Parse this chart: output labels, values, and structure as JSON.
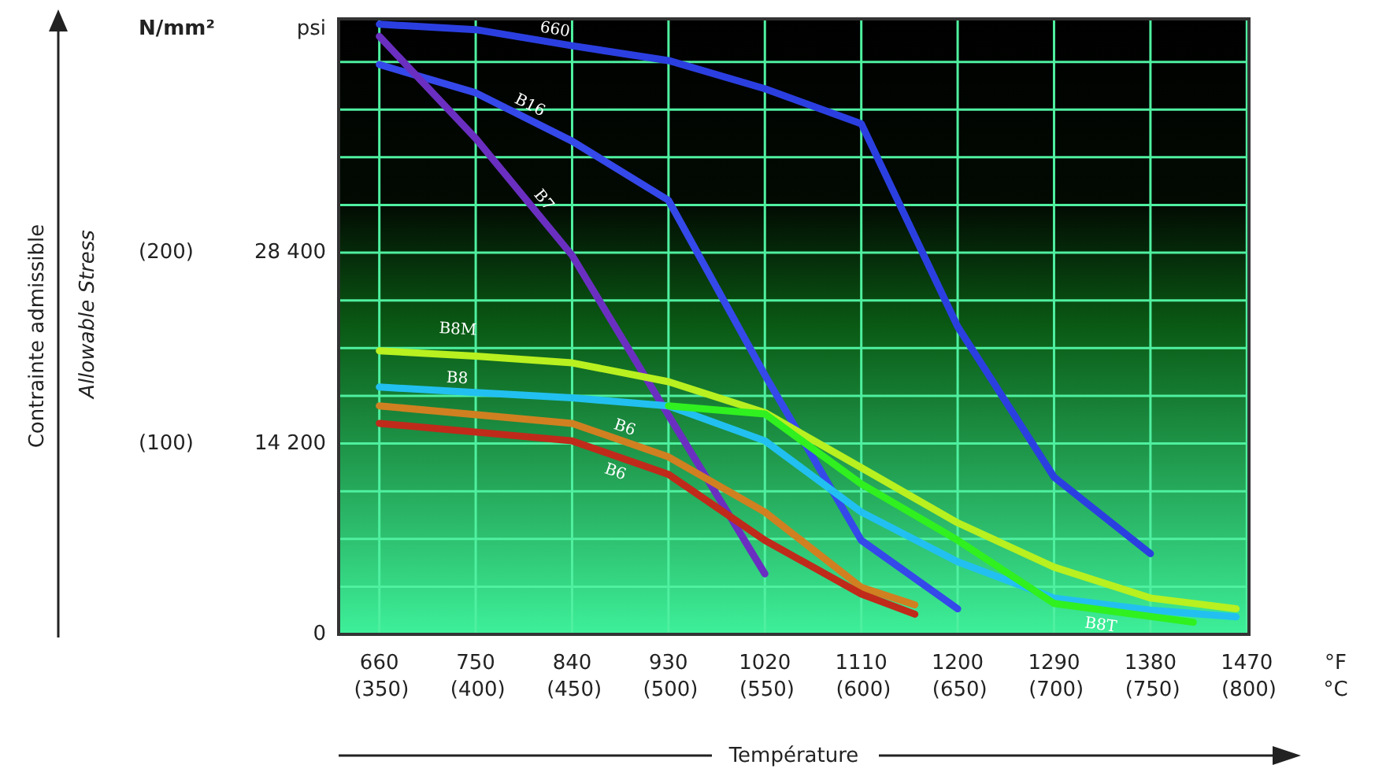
{
  "chart_data": {
    "type": "line",
    "xlabel": "Température",
    "annotations": [
      "Contrainte admissible",
      "N/mm²",
      "psi",
      "°F",
      "°C",
      "Allowable Stress"
    ],
    "xlim": [
      622,
      1472
    ],
    "xticks": [
      660,
      750,
      840,
      930,
      1020,
      1110,
      1200,
      1290,
      1380,
      1470
    ],
    "x2lim": [
      327.8,
      800
    ],
    "x2ticks": [
      {
        "value": 350,
        "label": "(350)"
      },
      {
        "value": 400,
        "label": "(400)"
      },
      {
        "value": 450,
        "label": "(450)"
      },
      {
        "value": 500,
        "label": "(500)"
      },
      {
        "value": 550,
        "label": "(550)"
      },
      {
        "value": 600,
        "label": "(600)"
      },
      {
        "value": 650,
        "label": "(650)"
      },
      {
        "value": 700,
        "label": "(700)"
      },
      {
        "value": 750,
        "label": "(750)"
      },
      {
        "value": 800,
        "label": "(800)"
      }
    ],
    "ylim": [
      0,
      45800
    ],
    "yticks": [
      0,
      {
        "value": 3550,
        "label": null
      },
      {
        "value": 7100,
        "label": null
      },
      {
        "value": 10650,
        "label": null
      },
      {
        "value": 14200,
        "label": "14 200"
      },
      {
        "value": 17750,
        "label": null
      },
      {
        "value": 21300,
        "label": null
      },
      {
        "value": 24850,
        "label": null
      },
      {
        "value": 28400,
        "label": "28 400"
      },
      {
        "value": 31950,
        "label": null
      },
      {
        "value": 35500,
        "label": null
      },
      {
        "value": 39050,
        "label": null
      },
      {
        "value": 42600,
        "label": null
      }
    ],
    "y2lim": [
      0,
      322.5
    ],
    "y2ticks": [
      {
        "value": 100,
        "label": "(100)"
      },
      {
        "value": 200,
        "label": "(200)"
      }
    ],
    "grid": true,
    "series": [
      {
        "name": "660",
        "color": "#2b3fe0",
        "x": [
          660,
          750,
          840,
          930,
          1020,
          1110,
          1200,
          1290,
          1380
        ],
        "values": [
          45400,
          45000,
          43800,
          42700,
          40600,
          38000,
          22900,
          11700,
          6000
        ]
      },
      {
        "name": "B16",
        "color": "#3548ea",
        "x": [
          660,
          750,
          840,
          930,
          1020,
          1110,
          1200
        ],
        "values": [
          42400,
          40300,
          36700,
          32300,
          19300,
          7000,
          1900
        ]
      },
      {
        "name": "B7",
        "color": "#6a2fc0",
        "x": [
          660,
          750,
          840,
          930,
          1020
        ],
        "values": [
          44500,
          36900,
          28200,
          16300,
          4500
        ]
      },
      {
        "name": "B8M",
        "color": "#b8f020",
        "x": [
          660,
          750,
          840,
          930,
          1020,
          1110,
          1200,
          1290,
          1380,
          1460
        ],
        "values": [
          21100,
          20700,
          20200,
          18800,
          16500,
          12400,
          8300,
          5000,
          2700,
          1900
        ]
      },
      {
        "name": "B8",
        "color": "#22c0f0",
        "x": [
          660,
          750,
          840,
          930,
          1020,
          1110,
          1200,
          1290,
          1380,
          1460
        ],
        "values": [
          18400,
          18000,
          17600,
          17000,
          14400,
          9100,
          5400,
          2700,
          1800,
          1300
        ]
      },
      {
        "name": "B6",
        "color": "#d08020",
        "x": [
          660,
          840,
          930,
          1020,
          1110,
          1160
        ],
        "values": [
          17000,
          15700,
          13200,
          9100,
          3500,
          2200
        ]
      },
      {
        "name": "B6",
        "color": "#c02a1a",
        "x": [
          660,
          840,
          930,
          1020,
          1110,
          1160
        ],
        "values": [
          15700,
          14400,
          11900,
          7000,
          3000,
          1500
        ]
      },
      {
        "name": "B8T",
        "color": "#30f020",
        "x": [
          930,
          1020,
          1110,
          1200,
          1290,
          1420
        ],
        "values": [
          17000,
          16400,
          11200,
          7000,
          2300,
          900
        ]
      }
    ]
  }
}
